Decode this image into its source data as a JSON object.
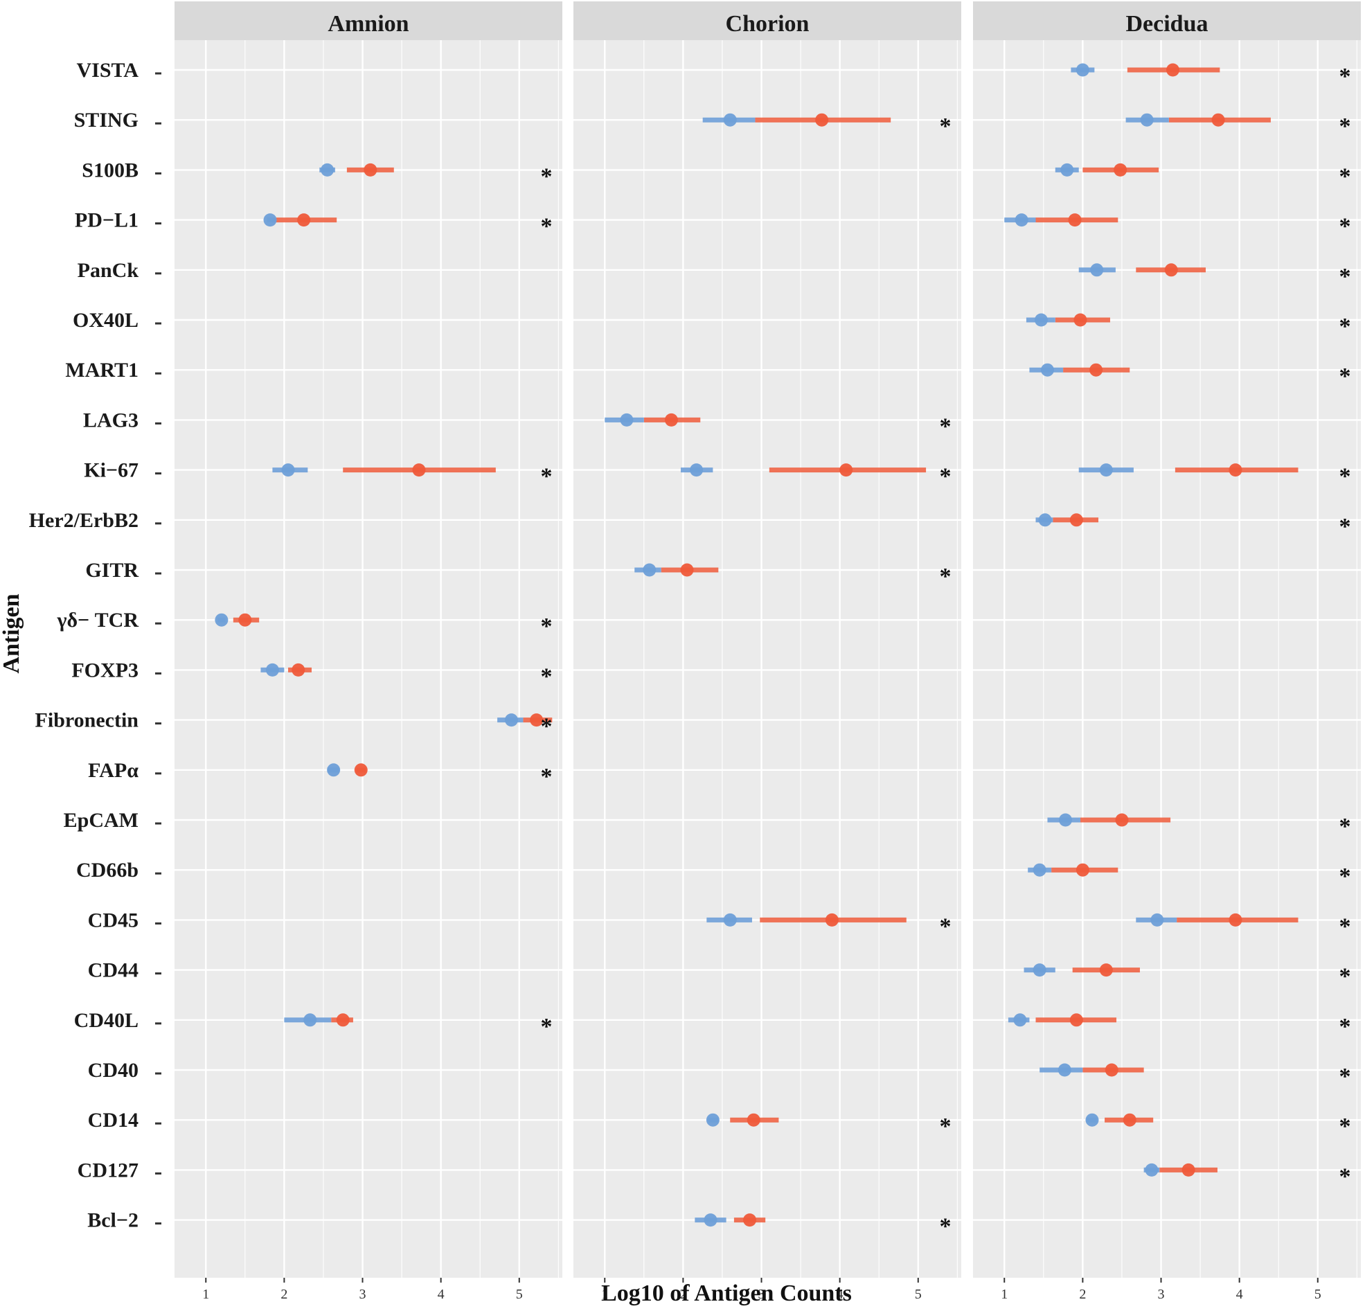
{
  "chart_data": {
    "type": "dot-range",
    "xlabel": "Log10 of Antigen Counts",
    "ylabel": "Antigen",
    "xlim": [
      0.6,
      5.55
    ],
    "xticks": [
      1,
      2,
      3,
      4,
      5
    ],
    "grid": true,
    "sig_label": "*",
    "colors": {
      "blue": "#6e9fd8",
      "red": "#ef5a3a"
    },
    "antigens": [
      "VISTA",
      "STING",
      "S100B",
      "PD−L1",
      "PanCk",
      "OX40L",
      "MART1",
      "LAG3",
      "Ki−67",
      "Her2/ErbB2",
      "GITR",
      "γδ− TCR",
      "FOXP3",
      "Fibronectin",
      "FAPα",
      "EpCAM",
      "CD66b",
      "CD45",
      "CD44",
      "CD40L",
      "CD40",
      "CD14",
      "CD127",
      "Bcl−2"
    ],
    "panels": [
      {
        "name": "Amnion",
        "points": [
          {
            "antigen": "S100B",
            "blue": 2.55,
            "blue_range": [
              2.45,
              2.65
            ],
            "red": 3.1,
            "red_range": [
              2.8,
              3.4
            ],
            "sig": true
          },
          {
            "antigen": "PD−L1",
            "blue": 1.82,
            "blue_range": [
              1.78,
              1.88
            ],
            "red": 2.25,
            "red_range": [
              1.85,
              2.67
            ],
            "sig": true
          },
          {
            "antigen": "Ki−67",
            "blue": 2.05,
            "blue_range": [
              1.85,
              2.3
            ],
            "red": 3.72,
            "red_range": [
              2.75,
              4.7
            ],
            "sig": true
          },
          {
            "antigen": "γδ− TCR",
            "blue": 1.2,
            "blue_range": [
              1.15,
              1.25
            ],
            "red": 1.5,
            "red_range": [
              1.35,
              1.68
            ],
            "sig": true
          },
          {
            "antigen": "FOXP3",
            "blue": 1.85,
            "blue_range": [
              1.7,
              2.0
            ],
            "red": 2.18,
            "red_range": [
              2.05,
              2.35
            ],
            "sig": true
          },
          {
            "antigen": "Fibronectin",
            "blue": 4.9,
            "blue_range": [
              4.72,
              5.05
            ],
            "red": 5.22,
            "red_range": [
              5.05,
              5.42
            ],
            "sig": true
          },
          {
            "antigen": "FAPα",
            "blue": 2.63,
            "blue_range": [
              2.55,
              2.7
            ],
            "red": 2.98,
            "red_range": [
              2.92,
              3.04
            ],
            "sig": true
          },
          {
            "antigen": "CD40L",
            "blue": 2.33,
            "blue_range": [
              2.0,
              2.6
            ],
            "red": 2.75,
            "red_range": [
              2.6,
              2.88
            ],
            "sig": true
          }
        ]
      },
      {
        "name": "Chorion",
        "points": [
          {
            "antigen": "STING",
            "blue": 2.6,
            "blue_range": [
              2.25,
              2.92
            ],
            "red": 3.77,
            "red_range": [
              2.92,
              4.65
            ],
            "sig": true
          },
          {
            "antigen": "LAG3",
            "blue": 1.28,
            "blue_range": [
              1.0,
              1.5
            ],
            "red": 1.85,
            "red_range": [
              1.5,
              2.22
            ],
            "sig": true
          },
          {
            "antigen": "Ki−67",
            "blue": 2.17,
            "blue_range": [
              1.97,
              2.38
            ],
            "red": 4.08,
            "red_range": [
              3.1,
              5.1
            ],
            "sig": true
          },
          {
            "antigen": "GITR",
            "blue": 1.57,
            "blue_range": [
              1.38,
              1.72
            ],
            "red": 2.05,
            "red_range": [
              1.72,
              2.45
            ],
            "sig": true
          },
          {
            "antigen": "CD45",
            "blue": 2.6,
            "blue_range": [
              2.3,
              2.88
            ],
            "red": 3.9,
            "red_range": [
              2.98,
              4.85
            ],
            "sig": true
          },
          {
            "antigen": "CD14",
            "blue": 2.38,
            "blue_range": [
              2.32,
              2.45
            ],
            "red": 2.9,
            "red_range": [
              2.6,
              3.22
            ],
            "sig": true
          },
          {
            "antigen": "Bcl−2",
            "blue": 2.35,
            "blue_range": [
              2.15,
              2.55
            ],
            "red": 2.85,
            "red_range": [
              2.65,
              3.05
            ],
            "sig": true
          }
        ]
      },
      {
        "name": "Decidua",
        "points": [
          {
            "antigen": "VISTA",
            "blue": 2.0,
            "blue_range": [
              1.85,
              2.15
            ],
            "red": 3.15,
            "red_range": [
              2.57,
              3.75
            ],
            "sig": true
          },
          {
            "antigen": "STING",
            "blue": 2.82,
            "blue_range": [
              2.55,
              3.1
            ],
            "red": 3.73,
            "red_range": [
              3.1,
              4.4
            ],
            "sig": true
          },
          {
            "antigen": "S100B",
            "blue": 1.8,
            "blue_range": [
              1.65,
              1.95
            ],
            "red": 2.48,
            "red_range": [
              2.0,
              2.97
            ],
            "sig": true
          },
          {
            "antigen": "PD−L1",
            "blue": 1.22,
            "blue_range": [
              1.0,
              1.4
            ],
            "red": 1.9,
            "red_range": [
              1.4,
              2.45
            ],
            "sig": true
          },
          {
            "antigen": "PanCk",
            "blue": 2.18,
            "blue_range": [
              1.95,
              2.42
            ],
            "red": 3.13,
            "red_range": [
              2.68,
              3.57
            ],
            "sig": true
          },
          {
            "antigen": "OX40L",
            "blue": 1.47,
            "blue_range": [
              1.28,
              1.65
            ],
            "red": 1.97,
            "red_range": [
              1.65,
              2.35
            ],
            "sig": true
          },
          {
            "antigen": "MART1",
            "blue": 1.55,
            "blue_range": [
              1.32,
              1.75
            ],
            "red": 2.17,
            "red_range": [
              1.75,
              2.6
            ],
            "sig": true
          },
          {
            "antigen": "Ki−67",
            "blue": 2.3,
            "blue_range": [
              1.95,
              2.65
            ],
            "red": 3.95,
            "red_range": [
              3.18,
              4.75
            ],
            "sig": true
          },
          {
            "antigen": "Her2/ErbB2",
            "blue": 1.52,
            "blue_range": [
              1.4,
              1.62
            ],
            "red": 1.92,
            "red_range": [
              1.62,
              2.2
            ],
            "sig": true
          },
          {
            "antigen": "EpCAM",
            "blue": 1.78,
            "blue_range": [
              1.55,
              1.97
            ],
            "red": 2.5,
            "red_range": [
              1.97,
              3.12
            ],
            "sig": true
          },
          {
            "antigen": "CD66b",
            "blue": 1.45,
            "blue_range": [
              1.3,
              1.6
            ],
            "red": 2.0,
            "red_range": [
              1.6,
              2.45
            ],
            "sig": true
          },
          {
            "antigen": "CD45",
            "blue": 2.95,
            "blue_range": [
              2.68,
              3.2
            ],
            "red": 3.95,
            "red_range": [
              3.2,
              4.75
            ],
            "sig": true
          },
          {
            "antigen": "CD44",
            "blue": 1.45,
            "blue_range": [
              1.25,
              1.65
            ],
            "red": 2.3,
            "red_range": [
              1.87,
              2.73
            ],
            "sig": true
          },
          {
            "antigen": "CD40L",
            "blue": 1.2,
            "blue_range": [
              1.05,
              1.32
            ],
            "red": 1.92,
            "red_range": [
              1.4,
              2.43
            ],
            "sig": true
          },
          {
            "antigen": "CD40",
            "blue": 1.77,
            "blue_range": [
              1.45,
              2.0
            ],
            "red": 2.37,
            "red_range": [
              2.0,
              2.78
            ],
            "sig": true
          },
          {
            "antigen": "CD14",
            "blue": 2.12,
            "blue_range": [
              2.05,
              2.18
            ],
            "red": 2.6,
            "red_range": [
              2.28,
              2.9
            ],
            "sig": true
          },
          {
            "antigen": "CD127",
            "blue": 2.88,
            "blue_range": [
              2.78,
              2.98
            ],
            "red": 3.35,
            "red_range": [
              2.98,
              3.72
            ],
            "sig": true
          }
        ]
      }
    ]
  }
}
